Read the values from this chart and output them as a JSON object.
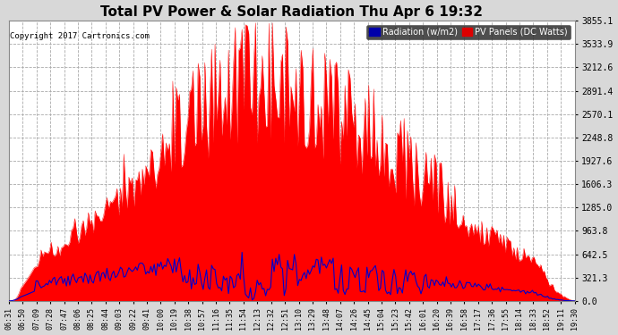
{
  "title": "Total PV Power & Solar Radiation Thu Apr 6 19:32",
  "copyright": "Copyright 2017 Cartronics.com",
  "bg_color": "#d8d8d8",
  "plot_bg_color": "#ffffff",
  "red_color": "#ff0000",
  "blue_color": "#0000cc",
  "yticks": [
    0.0,
    321.3,
    642.5,
    963.8,
    1285.0,
    1606.3,
    1927.6,
    2248.8,
    2570.1,
    2891.4,
    3212.6,
    3533.9,
    3855.1
  ],
  "ymax": 3855.1,
  "xtick_labels": [
    "06:31",
    "06:50",
    "07:09",
    "07:28",
    "07:47",
    "08:06",
    "08:25",
    "08:44",
    "09:03",
    "09:22",
    "09:41",
    "10:00",
    "10:19",
    "10:38",
    "10:57",
    "11:16",
    "11:35",
    "11:54",
    "12:13",
    "12:32",
    "12:51",
    "13:10",
    "13:29",
    "13:48",
    "14:07",
    "14:26",
    "14:45",
    "15:04",
    "15:23",
    "15:42",
    "16:01",
    "16:20",
    "16:39",
    "16:58",
    "17:17",
    "17:36",
    "17:55",
    "18:14",
    "18:33",
    "18:52",
    "19:11",
    "19:30"
  ],
  "legend_radiation_label": "Radiation (w/m2)",
  "legend_pv_label": "PV Panels (DC Watts)",
  "legend_radiation_bg": "#0000aa",
  "legend_pv_bg": "#dd0000"
}
